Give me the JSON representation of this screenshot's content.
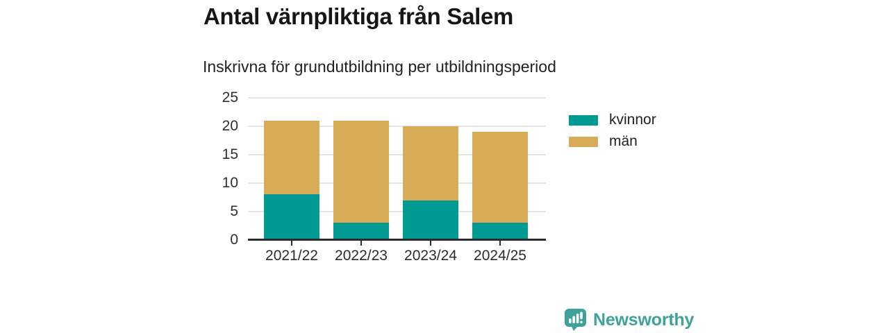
{
  "header": {
    "title": "Antal värnpliktiga från Salem",
    "subtitle": "Inskrivna för grundutbildning per utbildningsperiod"
  },
  "chart_data": {
    "type": "bar",
    "stacked": true,
    "title": "Antal värnpliktiga från Salem",
    "subtitle": "Inskrivna för grundutbildning per utbildningsperiod",
    "categories": [
      "2021/22",
      "2022/23",
      "2023/24",
      "2024/25"
    ],
    "series": [
      {
        "name": "kvinnor",
        "color": "#009a93",
        "values": [
          8,
          3,
          7,
          3
        ]
      },
      {
        "name": "män",
        "color": "#d8ab57",
        "values": [
          13,
          18,
          13,
          16
        ]
      }
    ],
    "totals": [
      21,
      21,
      20,
      19
    ],
    "xlabel": "",
    "ylabel": "",
    "ylim": [
      0,
      25
    ],
    "yticks": [
      0,
      5,
      10,
      15,
      20,
      25
    ],
    "grid": true,
    "legend_position": "right"
  },
  "legend": {
    "items": [
      {
        "label": "kvinnor",
        "color": "#009a93"
      },
      {
        "label": "män",
        "color": "#d8ab57"
      }
    ]
  },
  "branding": {
    "logo_text": "Newsworthy",
    "logo_icon": "bar-chart-speech-bubble-icon",
    "logo_color": "#3fa29a"
  },
  "colors": {
    "grid": "#e4e4e4",
    "axis": "#2b2b2b",
    "title_text": "#161616",
    "background": "#ffffff"
  }
}
